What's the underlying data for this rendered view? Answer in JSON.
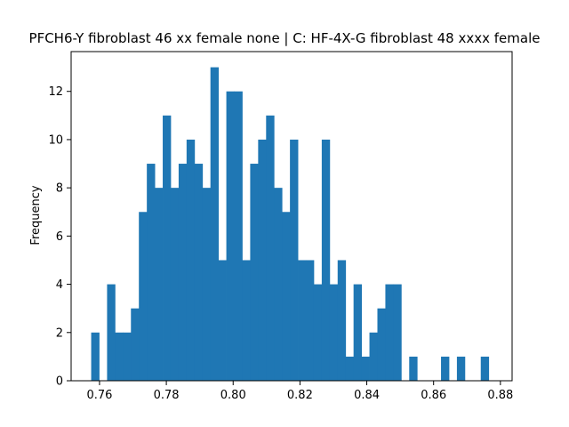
{
  "chart_data": {
    "type": "bar",
    "title": "PFCH6-Y fibroblast 46 xx female none | C: HF-4X-G fibroblast 48 xxxx female",
    "xlabel": "",
    "ylabel": "Frequency",
    "bar_color": "#1f77b4",
    "bin_start": 0.7575,
    "bin_width": 0.00238,
    "values": [
      2,
      0,
      4,
      2,
      2,
      3,
      7,
      9,
      8,
      11,
      8,
      9,
      10,
      9,
      8,
      13,
      5,
      12,
      12,
      5,
      9,
      10,
      11,
      8,
      7,
      10,
      5,
      5,
      4,
      10,
      4,
      5,
      1,
      4,
      1,
      2,
      3,
      4,
      4,
      0,
      1,
      0,
      0,
      0,
      1,
      0,
      1,
      0,
      0,
      1
    ],
    "xlim": [
      0.7515,
      0.8835
    ],
    "ylim": [
      0,
      13.65
    ],
    "xticks": [
      0.76,
      0.78,
      0.8,
      0.82,
      0.84,
      0.86,
      0.88
    ],
    "xtick_labels": [
      "0.76",
      "0.78",
      "0.80",
      "0.82",
      "0.84",
      "0.86",
      "0.88"
    ],
    "yticks": [
      0,
      2,
      4,
      6,
      8,
      10,
      12
    ],
    "ytick_labels": [
      "0",
      "2",
      "4",
      "6",
      "8",
      "10",
      "12"
    ],
    "grid": false,
    "legend": "none"
  }
}
